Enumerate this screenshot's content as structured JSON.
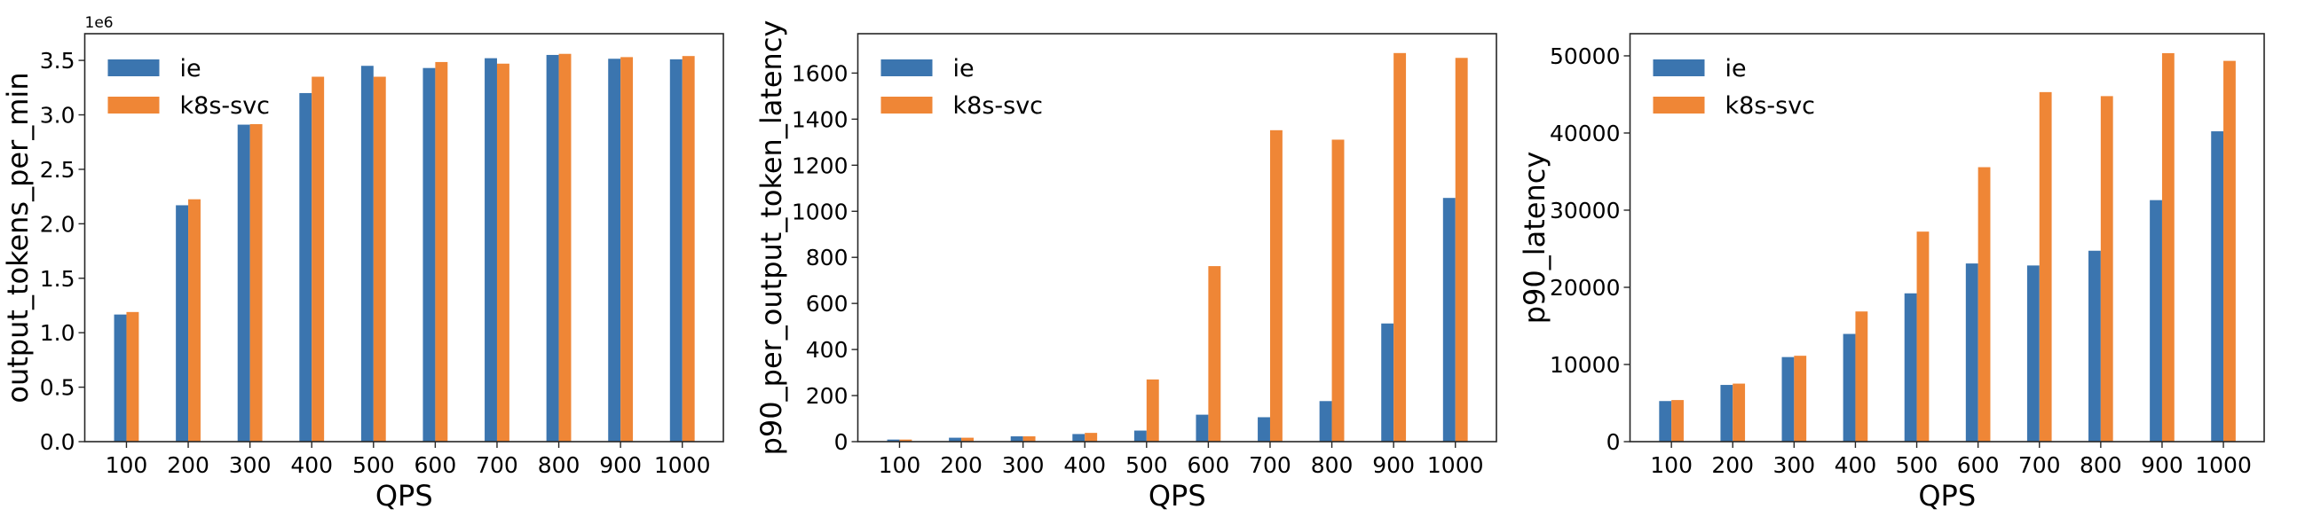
{
  "colors": {
    "ie": "#3b75af",
    "k8s-svc": "#ef8636"
  },
  "chart_data": [
    {
      "type": "bar",
      "categories": [
        "100",
        "200",
        "300",
        "400",
        "500",
        "600",
        "700",
        "800",
        "900",
        "1000"
      ],
      "xlabel": "QPS",
      "ylabel": "output_tokens_per_min",
      "offset_text": "1e6",
      "ylim": [
        0,
        3.745
      ],
      "yticks": [
        0.0,
        0.5,
        1.0,
        1.5,
        2.0,
        2.5,
        3.0,
        3.5
      ],
      "ytick_labels": [
        "0.0",
        "0.5",
        "1.0",
        "1.5",
        "2.0",
        "2.5",
        "3.0",
        "3.5"
      ],
      "legend": {
        "placement": "upper-left",
        "entries": [
          "ie",
          "k8s-svc"
        ]
      },
      "grid": false,
      "series": [
        {
          "name": "ie",
          "values": [
            1.167,
            2.17,
            2.91,
            3.2,
            3.45,
            3.43,
            3.52,
            3.55,
            3.515,
            3.51
          ]
        },
        {
          "name": "k8s-svc",
          "values": [
            1.19,
            2.225,
            2.915,
            3.35,
            3.35,
            3.485,
            3.47,
            3.56,
            3.53,
            3.54
          ]
        }
      ]
    },
    {
      "type": "bar",
      "categories": [
        "100",
        "200",
        "300",
        "400",
        "500",
        "600",
        "700",
        "800",
        "900",
        "1000"
      ],
      "xlabel": "QPS",
      "ylabel": "p90_per_output_token_latency",
      "ylim": [
        0,
        1771
      ],
      "yticks": [
        0,
        200,
        400,
        600,
        800,
        1000,
        1200,
        1400,
        1600
      ],
      "ytick_labels": [
        "0",
        "200",
        "400",
        "600",
        "800",
        "1000",
        "1200",
        "1400",
        "1600"
      ],
      "legend": {
        "placement": "upper-left",
        "entries": [
          "ie",
          "k8s-svc"
        ]
      },
      "grid": false,
      "series": [
        {
          "name": "ie",
          "values": [
            9,
            17,
            23,
            33,
            48,
            117,
            106,
            176,
            513,
            1058
          ]
        },
        {
          "name": "k8s-svc",
          "values": [
            9,
            17,
            23,
            38,
            270,
            762,
            1352,
            1311,
            1687,
            1666
          ]
        }
      ]
    },
    {
      "type": "bar",
      "categories": [
        "100",
        "200",
        "300",
        "400",
        "500",
        "600",
        "700",
        "800",
        "900",
        "1000"
      ],
      "xlabel": "QPS",
      "ylabel": "p90_latency",
      "ylim": [
        0,
        52870
      ],
      "yticks": [
        0,
        10000,
        20000,
        30000,
        40000,
        50000
      ],
      "ytick_labels": [
        "0",
        "10000",
        "20000",
        "30000",
        "40000",
        "50000"
      ],
      "legend": {
        "placement": "upper-left",
        "entries": [
          "ie",
          "k8s-svc"
        ]
      },
      "grid": false,
      "series": [
        {
          "name": "ie",
          "values": [
            5260,
            7350,
            10960,
            13960,
            19220,
            23090,
            22830,
            24740,
            31300,
            40220
          ]
        },
        {
          "name": "k8s-svc",
          "values": [
            5390,
            7520,
            11130,
            16870,
            27220,
            35570,
            45300,
            44780,
            50350,
            49350
          ]
        }
      ]
    }
  ]
}
